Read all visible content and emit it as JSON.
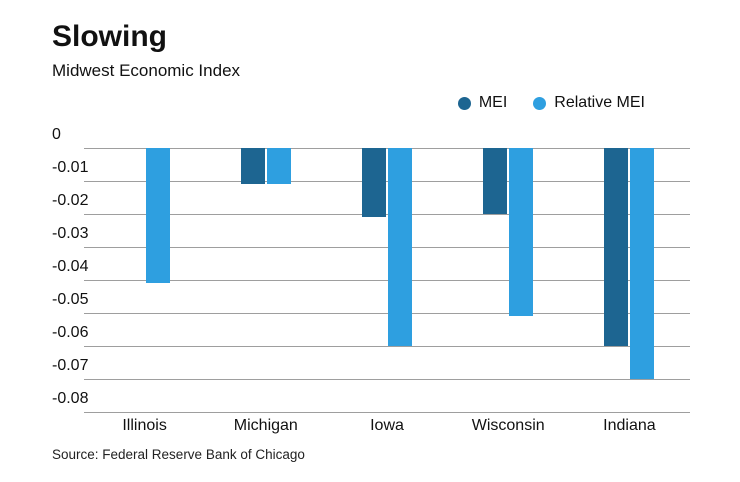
{
  "header": {
    "title": "Slowing",
    "subtitle": "Midwest Economic Index"
  },
  "legend": [
    {
      "label": "MEI",
      "color": "#1d6591"
    },
    {
      "label": "Relative MEI",
      "color": "#2e9fe0"
    }
  ],
  "source": "Source: Federal Reserve Bank of Chicago",
  "colors": {
    "mei": "#1d6591",
    "relative_mei": "#2e9fe0",
    "gridline": "#9e9e9e",
    "text": "#111111"
  },
  "chart_data": {
    "type": "bar",
    "title": "Slowing",
    "subtitle": "Midwest Economic Index",
    "categories": [
      "Illinois",
      "Michigan",
      "Iowa",
      "Wisconsin",
      "Indiana"
    ],
    "series": [
      {
        "name": "MEI",
        "color": "#1d6591",
        "values": [
          0,
          -0.011,
          -0.021,
          -0.02,
          -0.06
        ]
      },
      {
        "name": "Relative MEI",
        "color": "#2e9fe0",
        "values": [
          -0.041,
          -0.011,
          -0.06,
          -0.051,
          -0.07
        ]
      }
    ],
    "xlabel": "",
    "ylabel": "",
    "ylim": [
      -0.08,
      0
    ],
    "yticks": [
      0,
      -0.01,
      -0.02,
      -0.03,
      -0.04,
      -0.05,
      -0.06,
      -0.07,
      -0.08
    ],
    "grid": true,
    "legend_position": "top-right",
    "source": "Source: Federal Reserve Bank of Chicago"
  }
}
